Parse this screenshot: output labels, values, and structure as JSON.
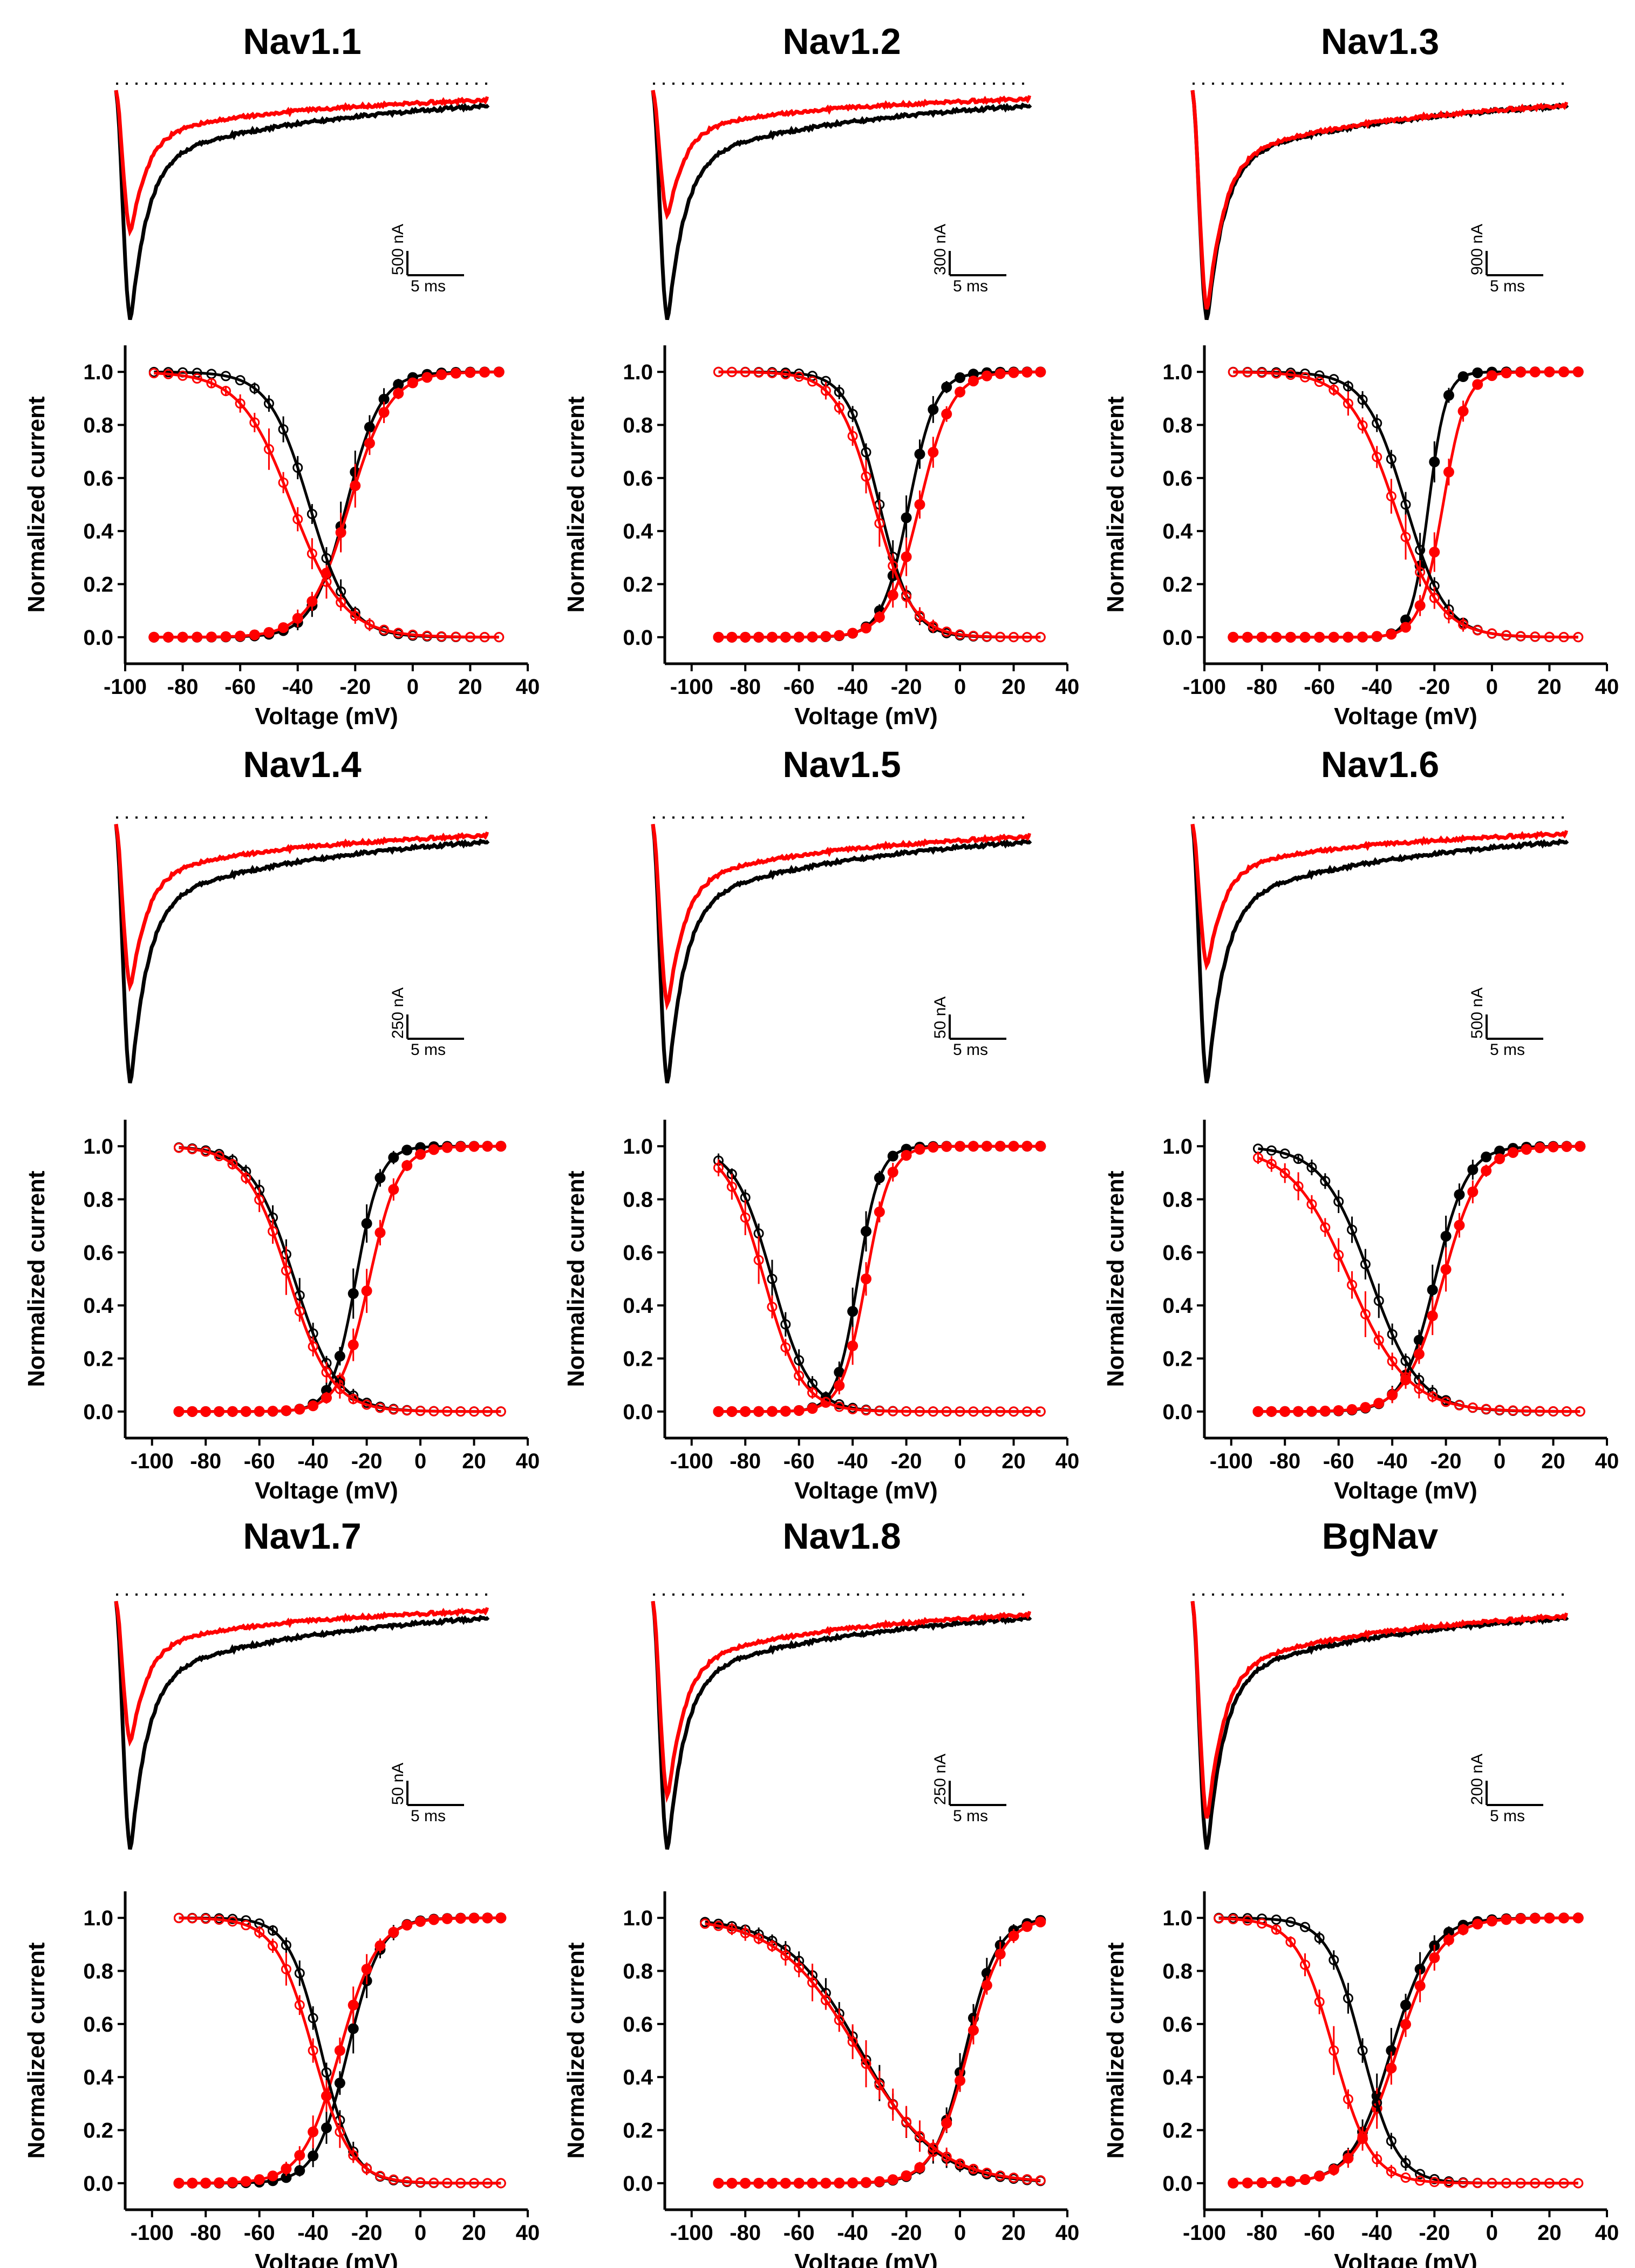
{
  "figure": {
    "background": "#ffffff",
    "control_color": "#000000",
    "toxin_color": "#ff0000"
  },
  "chart_data": [
    {
      "channel": "Nav1.1",
      "trace": {
        "type": "line",
        "peak_control": 1.0,
        "peak_toxin": 0.62,
        "scale_current": "500 nA",
        "scale_time": "5 ms"
      },
      "iv": {
        "type": "scatter-line",
        "xlabel": "Voltage (mV)",
        "ylabel": "Normalized current",
        "xlim": [
          -100,
          40
        ],
        "ylim": [
          -0.1,
          1.1
        ],
        "xticks": [
          "-100",
          "-80",
          "-60",
          "-40",
          "-20",
          "0",
          "20",
          "40"
        ],
        "yticks": [
          "0.0",
          "0.2",
          "0.4",
          "0.6",
          "0.8",
          "1.0"
        ],
        "series": [
          {
            "name": "control activation",
            "color": "#000000",
            "v_half": -23,
            "k": 6,
            "sign": 1,
            "x_start": -90,
            "x_end": 30
          },
          {
            "name": "toxin activation",
            "color": "#ff0000",
            "v_half": -22,
            "k": 7,
            "sign": 1,
            "x_start": -90,
            "x_end": 30
          },
          {
            "name": "control inactivation",
            "color": "#000000",
            "v_half": -36,
            "k": 7,
            "sign": -1,
            "x_start": -90,
            "x_end": 30
          },
          {
            "name": "toxin inactivation",
            "color": "#ff0000",
            "v_half": -42,
            "k": 9,
            "sign": -1,
            "x_start": -90,
            "x_end": 30
          }
        ]
      }
    },
    {
      "channel": "Nav1.2",
      "trace": {
        "type": "line",
        "peak_control": 1.0,
        "peak_toxin": 0.55,
        "scale_current": "300 nA",
        "scale_time": "5 ms"
      },
      "iv": {
        "type": "scatter-line",
        "xlabel": "Voltage (mV)",
        "ylabel": "Normalized current",
        "xlim": [
          -110,
          40
        ],
        "ylim": [
          -0.1,
          1.1
        ],
        "xticks": [
          "-100",
          "-80",
          "-60",
          "-40",
          "-20",
          "0",
          "20",
          "40"
        ],
        "yticks": [
          "0.0",
          "0.2",
          "0.4",
          "0.6",
          "0.8",
          "1.0"
        ],
        "series": [
          {
            "name": "control activation",
            "color": "#000000",
            "v_half": -19,
            "k": 5,
            "sign": 1,
            "x_start": -90,
            "x_end": 30
          },
          {
            "name": "toxin activation",
            "color": "#ff0000",
            "v_half": -15,
            "k": 6,
            "sign": 1,
            "x_start": -90,
            "x_end": 30
          },
          {
            "name": "control inactivation",
            "color": "#000000",
            "v_half": -30,
            "k": 6,
            "sign": -1,
            "x_start": -90,
            "x_end": 30
          },
          {
            "name": "toxin inactivation",
            "color": "#ff0000",
            "v_half": -32,
            "k": 7,
            "sign": -1,
            "x_start": -90,
            "x_end": 30
          }
        ]
      }
    },
    {
      "channel": "Nav1.3",
      "trace": {
        "type": "line",
        "peak_control": 1.0,
        "peak_toxin": 0.96,
        "scale_current": "900 nA",
        "scale_time": "5 ms"
      },
      "iv": {
        "type": "scatter-line",
        "xlabel": "Voltage (mV)",
        "ylabel": "Normalized current",
        "xlim": [
          -100,
          40
        ],
        "ylim": [
          -0.1,
          1.1
        ],
        "xticks": [
          "-100",
          "-80",
          "-60",
          "-40",
          "-20",
          "0",
          "20",
          "40"
        ],
        "yticks": [
          "0.0",
          "0.2",
          "0.4",
          "0.6",
          "0.8",
          "1.0"
        ],
        "series": [
          {
            "name": "control activation",
            "color": "#000000",
            "v_half": -22,
            "k": 3,
            "sign": 1,
            "x_start": -90,
            "x_end": 30
          },
          {
            "name": "toxin activation",
            "color": "#ff0000",
            "v_half": -17,
            "k": 4,
            "sign": 1,
            "x_start": -90,
            "x_end": 30
          },
          {
            "name": "control inactivation",
            "color": "#000000",
            "v_half": -30,
            "k": 7,
            "sign": -1,
            "x_start": -90,
            "x_end": 30
          },
          {
            "name": "toxin inactivation",
            "color": "#ff0000",
            "v_half": -34,
            "k": 8,
            "sign": -1,
            "x_start": -90,
            "x_end": 30
          }
        ]
      }
    },
    {
      "channel": "Nav1.4",
      "trace": {
        "type": "line",
        "peak_control": 1.0,
        "peak_toxin": 0.63,
        "scale_current": "250 nA",
        "scale_time": "5 ms"
      },
      "iv": {
        "type": "scatter-line",
        "xlabel": "Voltage (mV)",
        "ylabel": "Normalized current",
        "xlim": [
          -110,
          40
        ],
        "ylim": [
          -0.1,
          1.1
        ],
        "xticks": [
          "-100",
          "-80",
          "-60",
          "-40",
          "-20",
          "0",
          "20",
          "40"
        ],
        "yticks": [
          "0.0",
          "0.2",
          "0.4",
          "0.6",
          "0.8",
          "1.0"
        ],
        "series": [
          {
            "name": "control activation",
            "color": "#000000",
            "v_half": -24,
            "k": 4.5,
            "sign": 1,
            "x_start": -90,
            "x_end": 30
          },
          {
            "name": "toxin activation",
            "color": "#ff0000",
            "v_half": -19,
            "k": 5.5,
            "sign": 1,
            "x_start": -90,
            "x_end": 30
          },
          {
            "name": "control inactivation",
            "color": "#000000",
            "v_half": -47,
            "k": 8,
            "sign": -1,
            "x_start": -90,
            "x_end": 30
          },
          {
            "name": "toxin inactivation",
            "color": "#ff0000",
            "v_half": -49,
            "k": 8,
            "sign": -1,
            "x_start": -90,
            "x_end": 30
          }
        ]
      }
    },
    {
      "channel": "Nav1.5",
      "trace": {
        "type": "line",
        "peak_control": 1.0,
        "peak_toxin": 0.7,
        "scale_current": "50 nA",
        "scale_time": "5 ms"
      },
      "iv": {
        "type": "scatter-line",
        "xlabel": "Voltage (mV)",
        "ylabel": "Normalized current",
        "xlim": [
          -110,
          40
        ],
        "ylim": [
          -0.1,
          1.1
        ],
        "xticks": [
          "-100",
          "-80",
          "-60",
          "-40",
          "-20",
          "0",
          "20",
          "40"
        ],
        "yticks": [
          "0.0",
          "0.2",
          "0.4",
          "0.6",
          "0.8",
          "1.0"
        ],
        "series": [
          {
            "name": "control activation",
            "color": "#000000",
            "v_half": -38,
            "k": 4,
            "sign": 1,
            "x_start": -90,
            "x_end": 30
          },
          {
            "name": "toxin activation",
            "color": "#ff0000",
            "v_half": -35,
            "k": 4.5,
            "sign": 1,
            "x_start": -90,
            "x_end": 30
          },
          {
            "name": "control inactivation",
            "color": "#000000",
            "v_half": -70,
            "k": 7,
            "sign": -1,
            "x_start": -90,
            "x_end": 30
          },
          {
            "name": "toxin inactivation",
            "color": "#ff0000",
            "v_half": -73,
            "k": 7,
            "sign": -1,
            "x_start": -90,
            "x_end": 30
          }
        ]
      }
    },
    {
      "channel": "Nav1.6",
      "trace": {
        "type": "line",
        "peak_control": 1.0,
        "peak_toxin": 0.55,
        "scale_current": "500 nA",
        "scale_time": "5 ms"
      },
      "iv": {
        "type": "scatter-line",
        "xlabel": "Voltage (mV)",
        "ylabel": "Normalized current",
        "xlim": [
          -110,
          40
        ],
        "ylim": [
          -0.1,
          1.1
        ],
        "xticks": [
          "-100",
          "-80",
          "-60",
          "-40",
          "-20",
          "0",
          "20",
          "40"
        ],
        "yticks": [
          "0.0",
          "0.2",
          "0.4",
          "0.6",
          "0.8",
          "1.0"
        ],
        "series": [
          {
            "name": "control activation",
            "color": "#000000",
            "v_half": -24,
            "k": 6,
            "sign": 1,
            "x_start": -90,
            "x_end": 30
          },
          {
            "name": "toxin activation",
            "color": "#ff0000",
            "v_half": -21,
            "k": 7,
            "sign": 1,
            "x_start": -90,
            "x_end": 30
          },
          {
            "name": "control inactivation",
            "color": "#000000",
            "v_half": -48,
            "k": 9,
            "sign": -1,
            "x_start": -90,
            "x_end": 30
          },
          {
            "name": "toxin inactivation",
            "color": "#ff0000",
            "v_half": -56,
            "k": 11,
            "sign": -1,
            "x_start": -90,
            "x_end": 30
          }
        ]
      }
    },
    {
      "channel": "Nav1.7",
      "trace": {
        "type": "line",
        "peak_control": 1.0,
        "peak_toxin": 0.57,
        "scale_current": "50 nA",
        "scale_time": "5 ms"
      },
      "iv": {
        "type": "scatter-line",
        "xlabel": "Voltage (mV)",
        "ylabel": "Normalized current",
        "xlim": [
          -110,
          40
        ],
        "ylim": [
          -0.1,
          1.1
        ],
        "xticks": [
          "-100",
          "-80",
          "-60",
          "-40",
          "-20",
          "0",
          "20",
          "40"
        ],
        "yticks": [
          "0.0",
          "0.2",
          "0.4",
          "0.6",
          "0.8",
          "1.0"
        ],
        "series": [
          {
            "name": "control activation",
            "color": "#000000",
            "v_half": -27,
            "k": 6,
            "sign": 1,
            "x_start": -90,
            "x_end": 30
          },
          {
            "name": "toxin activation",
            "color": "#ff0000",
            "v_half": -30,
            "k": 7,
            "sign": 1,
            "x_start": -90,
            "x_end": 30
          },
          {
            "name": "control inactivation",
            "color": "#000000",
            "v_half": -37,
            "k": 6,
            "sign": -1,
            "x_start": -90,
            "x_end": 30
          },
          {
            "name": "toxin inactivation",
            "color": "#ff0000",
            "v_half": -40,
            "k": 7,
            "sign": -1,
            "x_start": -90,
            "x_end": 30
          }
        ]
      }
    },
    {
      "channel": "Nav1.8",
      "trace": {
        "type": "line",
        "peak_control": 1.0,
        "peak_toxin": 0.79,
        "scale_current": "250 nA",
        "scale_time": "5 ms"
      },
      "iv": {
        "type": "scatter-line",
        "xlabel": "Voltage (mV)",
        "ylabel": "Normalized current",
        "xlim": [
          -110,
          40
        ],
        "ylim": [
          -0.1,
          1.1
        ],
        "xticks": [
          "-100",
          "-80",
          "-60",
          "-40",
          "-20",
          "0",
          "20",
          "40"
        ],
        "yticks": [
          "0.0",
          "0.2",
          "0.4",
          "0.6",
          "0.8",
          "1.0"
        ],
        "series": [
          {
            "name": "control activation",
            "color": "#000000",
            "v_half": 2,
            "k": 6,
            "sign": 1,
            "x_start": -90,
            "x_end": 30
          },
          {
            "name": "toxin activation",
            "color": "#ff0000",
            "v_half": 3,
            "k": 6.5,
            "sign": 1,
            "x_start": -90,
            "x_end": 30
          },
          {
            "name": "control inactivation",
            "color": "#000000",
            "v_half": -37,
            "k": 14,
            "sign": -1,
            "x_start": -95,
            "x_end": 30
          },
          {
            "name": "toxin inactivation",
            "color": "#ff0000",
            "v_half": -38,
            "k": 15,
            "sign": -1,
            "x_start": -95,
            "x_end": 30
          }
        ]
      }
    },
    {
      "channel": "BgNav",
      "trace": {
        "type": "line",
        "peak_control": 1.0,
        "peak_toxin": 0.88,
        "scale_current": "200 nA",
        "scale_time": "5 ms"
      },
      "iv": {
        "type": "scatter-line",
        "xlabel": "Voltage (mV)",
        "ylabel": "Normalized current",
        "xlim": [
          -100,
          40
        ],
        "ylim": [
          -0.1,
          1.1
        ],
        "xticks": [
          "-100",
          "-80",
          "-60",
          "-40",
          "-20",
          "0",
          "20",
          "40"
        ],
        "yticks": [
          "0.0",
          "0.2",
          "0.4",
          "0.6",
          "0.8",
          "1.0"
        ],
        "series": [
          {
            "name": "control activation",
            "color": "#000000",
            "v_half": -35,
            "k": 7,
            "sign": 1,
            "x_start": -90,
            "x_end": 30
          },
          {
            "name": "toxin activation",
            "color": "#ff0000",
            "v_half": -33,
            "k": 7.5,
            "sign": 1,
            "x_start": -90,
            "x_end": 30
          },
          {
            "name": "control inactivation",
            "color": "#000000",
            "v_half": -45,
            "k": 6,
            "sign": -1,
            "x_start": -95,
            "x_end": 30
          },
          {
            "name": "toxin inactivation",
            "color": "#ff0000",
            "v_half": -55,
            "k": 6.5,
            "sign": -1,
            "x_start": -95,
            "x_end": 30
          }
        ]
      }
    }
  ]
}
